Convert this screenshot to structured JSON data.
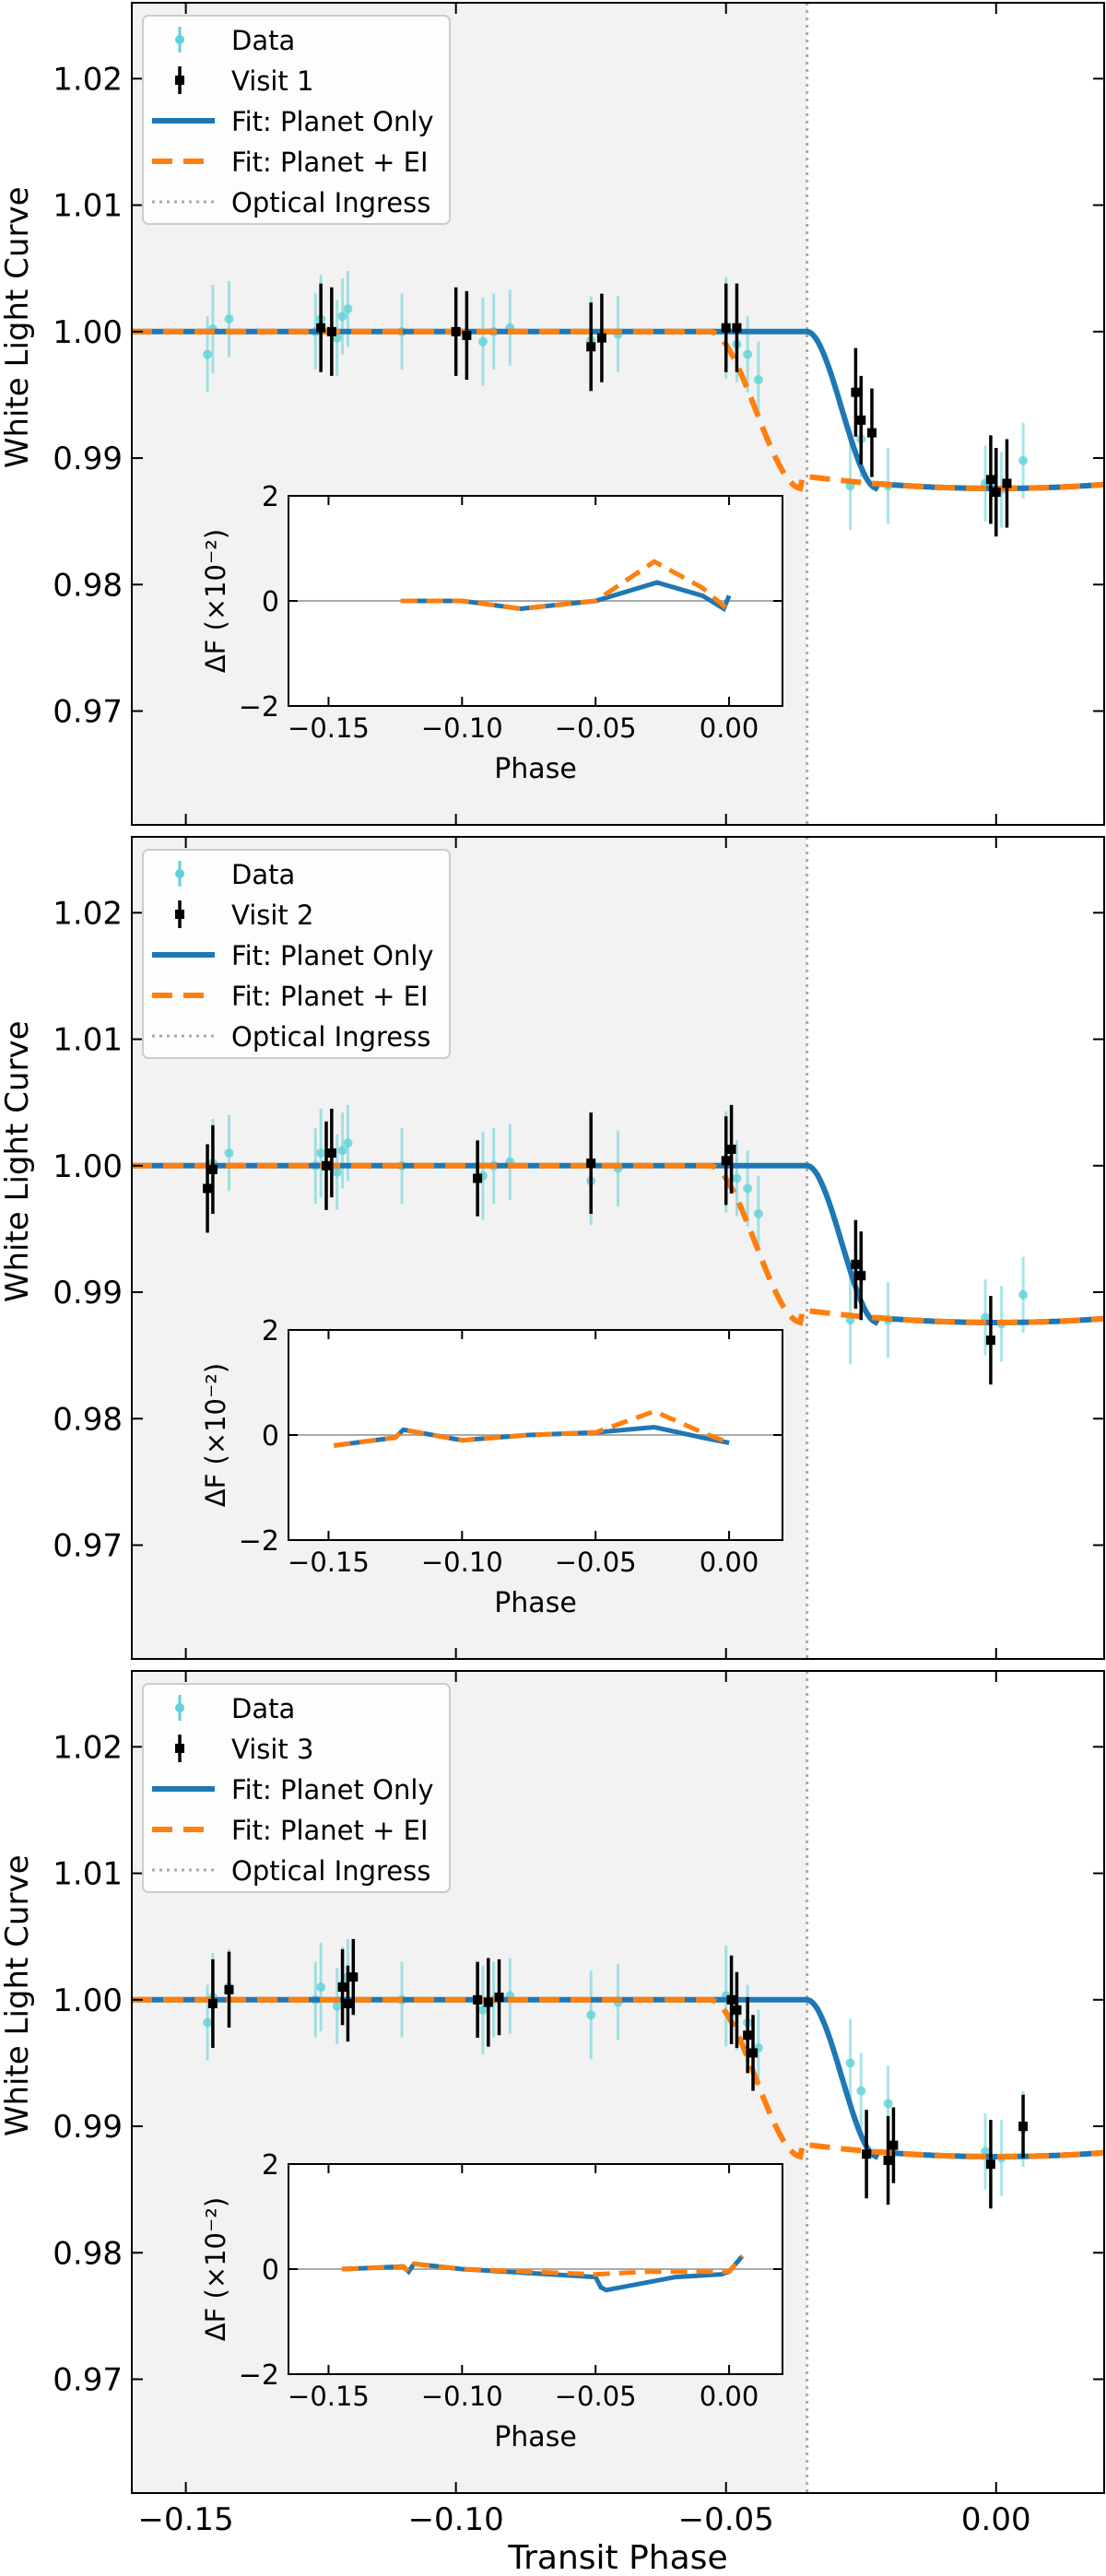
{
  "figure": {
    "xlabel": "Transit Phase",
    "ylabel": "White Light Curve",
    "xticks": [
      {
        "value": -0.15,
        "label": "−0.15"
      },
      {
        "value": -0.1,
        "label": "−0.10"
      },
      {
        "value": -0.05,
        "label": "−0.05"
      },
      {
        "value": 0.0,
        "label": "0.00"
      }
    ],
    "yticks": [
      {
        "value": 0.97,
        "label": "0.97"
      },
      {
        "value": 0.98,
        "label": "0.98"
      },
      {
        "value": 0.99,
        "label": "0.99"
      },
      {
        "value": 1.0,
        "label": "1.00"
      },
      {
        "value": 1.01,
        "label": "1.01"
      },
      {
        "value": 1.02,
        "label": "1.02"
      }
    ],
    "legend_labels": {
      "data": "Data",
      "planet_only": "Fit: Planet Only",
      "planet_ei": "Fit: Planet + EI",
      "optical_ingress": "Optical Ingress"
    },
    "inset": {
      "xlabel": "Phase",
      "ylabel": "ΔF (×10⁻²)",
      "ylim": [
        -2,
        2
      ],
      "xlim": [
        -0.165,
        0.02
      ],
      "xticks": [
        {
          "value": -0.15,
          "label": "−0.15"
        },
        {
          "value": -0.1,
          "label": "−0.10"
        },
        {
          "value": -0.05,
          "label": "−0.05"
        },
        {
          "value": 0.0,
          "label": "0.00"
        }
      ],
      "yticks": [
        {
          "value": -2,
          "label": "−2"
        },
        {
          "value": 0,
          "label": "0"
        },
        {
          "value": 2,
          "label": "2"
        }
      ]
    }
  },
  "chart_data": [
    {
      "type": "scatter",
      "title": "Visit 1",
      "xlabel": "Transit Phase",
      "ylabel": "White Light Curve",
      "xlim": [
        -0.16,
        0.02
      ],
      "ylim": [
        0.961,
        1.026
      ],
      "legend": [
        "Data",
        "Visit 1",
        "Fit: Planet Only",
        "Fit: Planet + EI",
        "Optical Ingress"
      ],
      "legend_position": "top-left",
      "optical_ingress": -0.035,
      "shaded_region": [
        -0.16,
        -0.035
      ],
      "planet_only_fit": {
        "baseline": 1.0,
        "ingress_start": -0.035,
        "ingress_end": -0.022,
        "mid_depth": 0.9876
      },
      "planet_ei_fit": {
        "baseline": 1.0,
        "ingress_start": -0.053,
        "ingress_end": -0.036,
        "mid_depth": 0.9876
      },
      "data": {
        "x": [
          -0.146,
          -0.145,
          -0.142,
          -0.126,
          -0.125,
          -0.122,
          -0.121,
          -0.12,
          -0.11,
          -0.095,
          -0.093,
          -0.09,
          -0.075,
          -0.07,
          -0.05,
          -0.048,
          -0.046,
          -0.044,
          -0.027,
          -0.025,
          -0.02,
          -0.002,
          0.001,
          0.005
        ],
        "y": [
          0.9982,
          1.0002,
          1.001,
          1.0,
          1.001,
          0.9995,
          1.0012,
          1.0018,
          1.0,
          0.9992,
          1.0,
          1.0003,
          0.9993,
          0.9998,
          1.0003,
          0.999,
          0.9982,
          0.9962,
          0.9878,
          0.9915,
          0.9878,
          0.988,
          0.9875,
          0.9898
        ],
        "yerr": [
          0.003,
          0.0035,
          0.003,
          0.003,
          0.0035,
          0.003,
          0.003,
          0.003,
          0.003,
          0.0035,
          0.003,
          0.003,
          0.0035,
          0.003,
          0.004,
          0.003,
          0.003,
          0.003,
          0.0035,
          0.003,
          0.003,
          0.003,
          0.003,
          0.003
        ]
      },
      "visit": {
        "name": "Visit 1",
        "x": [
          -0.125,
          -0.123,
          -0.1,
          -0.098,
          -0.075,
          -0.073,
          -0.05,
          -0.048,
          -0.026,
          -0.025,
          -0.023,
          -0.001,
          0.0,
          0.002
        ],
        "y": [
          1.0003,
          1.0,
          1.0,
          0.9997,
          0.9988,
          0.9995,
          1.0003,
          1.0003,
          0.9952,
          0.993,
          0.992,
          0.9883,
          0.9873,
          0.988
        ],
        "yerr": [
          0.0035,
          0.0035,
          0.0035,
          0.0035,
          0.0035,
          0.0035,
          0.0035,
          0.0035,
          0.0035,
          0.0035,
          0.0035,
          0.0035,
          0.0035,
          0.0035
        ]
      },
      "inset_planet_only": {
        "x": [
          -0.123,
          -0.1,
          -0.078,
          -0.05,
          -0.027,
          -0.01,
          -0.002,
          0.0
        ],
        "y": [
          0.0,
          0.0,
          -0.15,
          0.0,
          0.35,
          0.1,
          -0.15,
          0.1
        ]
      },
      "inset_planet_ei": {
        "x": [
          -0.123,
          -0.1,
          -0.078,
          -0.05,
          -0.028,
          -0.01,
          -0.002,
          0.0
        ],
        "y": [
          0.0,
          0.0,
          -0.15,
          0.0,
          0.75,
          0.25,
          -0.1,
          0.1
        ]
      }
    },
    {
      "type": "scatter",
      "title": "Visit 2",
      "xlabel": "Transit Phase",
      "ylabel": "White Light Curve",
      "xlim": [
        -0.16,
        0.02
      ],
      "ylim": [
        0.961,
        1.026
      ],
      "legend": [
        "Data",
        "Visit 2",
        "Fit: Planet Only",
        "Fit: Planet + EI",
        "Optical Ingress"
      ],
      "legend_position": "top-left",
      "optical_ingress": -0.035,
      "shaded_region": [
        -0.16,
        -0.035
      ],
      "planet_only_fit": {
        "baseline": 1.0,
        "ingress_start": -0.035,
        "ingress_end": -0.022,
        "mid_depth": 0.9876
      },
      "planet_ei_fit": {
        "baseline": 1.0,
        "ingress_start": -0.053,
        "ingress_end": -0.036,
        "mid_depth": 0.9876
      },
      "data": {
        "x": [
          -0.146,
          -0.145,
          -0.142,
          -0.126,
          -0.125,
          -0.122,
          -0.121,
          -0.12,
          -0.11,
          -0.095,
          -0.093,
          -0.09,
          -0.075,
          -0.07,
          -0.05,
          -0.048,
          -0.046,
          -0.044,
          -0.027,
          -0.025,
          -0.02,
          -0.002,
          0.001,
          0.005
        ],
        "y": [
          0.9982,
          1.0002,
          1.001,
          1.0,
          1.001,
          0.9995,
          1.0012,
          1.0018,
          1.0,
          0.9992,
          1.0,
          1.0003,
          0.9988,
          0.9998,
          1.0003,
          0.999,
          0.9982,
          0.9962,
          0.9878,
          0.9915,
          0.9878,
          0.988,
          0.9875,
          0.9898
        ],
        "yerr": [
          0.003,
          0.0035,
          0.003,
          0.003,
          0.0035,
          0.003,
          0.003,
          0.003,
          0.003,
          0.0035,
          0.003,
          0.003,
          0.0035,
          0.003,
          0.004,
          0.003,
          0.003,
          0.003,
          0.0035,
          0.003,
          0.003,
          0.003,
          0.003,
          0.003
        ]
      },
      "visit": {
        "name": "Visit 2",
        "x": [
          -0.146,
          -0.145,
          -0.124,
          -0.123,
          -0.096,
          -0.075,
          -0.05,
          -0.049,
          -0.026,
          -0.025,
          -0.001
        ],
        "y": [
          0.9982,
          0.9997,
          1.0,
          1.001,
          0.999,
          1.0002,
          1.0004,
          1.0013,
          0.9922,
          0.9913,
          0.9862
        ],
        "yerr": [
          0.0035,
          0.0035,
          0.0035,
          0.0035,
          0.003,
          0.004,
          0.0035,
          0.0035,
          0.0035,
          0.0035,
          0.0035
        ]
      },
      "inset_planet_only": {
        "x": [
          -0.148,
          -0.125,
          -0.122,
          -0.1,
          -0.075,
          -0.05,
          -0.028,
          -0.01,
          0.0
        ],
        "y": [
          -0.2,
          -0.05,
          0.1,
          -0.1,
          0.0,
          0.05,
          0.15,
          -0.05,
          -0.15
        ]
      },
      "inset_planet_ei": {
        "x": [
          -0.148,
          -0.125,
          -0.122,
          -0.1,
          -0.075,
          -0.05,
          -0.028,
          -0.01,
          0.0
        ],
        "y": [
          -0.2,
          -0.05,
          0.1,
          -0.1,
          0.0,
          0.05,
          0.45,
          0.05,
          -0.15
        ]
      }
    },
    {
      "type": "scatter",
      "title": "Visit 3",
      "xlabel": "Transit Phase",
      "ylabel": "White Light Curve",
      "xlim": [
        -0.16,
        0.02
      ],
      "ylim": [
        0.961,
        1.026
      ],
      "legend": [
        "Data",
        "Visit 3",
        "Fit: Planet Only",
        "Fit: Planet + EI",
        "Optical Ingress"
      ],
      "legend_position": "top-left",
      "optical_ingress": -0.035,
      "shaded_region": [
        -0.16,
        -0.035
      ],
      "planet_only_fit": {
        "baseline": 1.0,
        "ingress_start": -0.035,
        "ingress_end": -0.022,
        "mid_depth": 0.9876
      },
      "planet_ei_fit": {
        "baseline": 1.0,
        "ingress_start": -0.053,
        "ingress_end": -0.036,
        "mid_depth": 0.9876
      },
      "data": {
        "x": [
          -0.146,
          -0.145,
          -0.142,
          -0.126,
          -0.125,
          -0.122,
          -0.121,
          -0.12,
          -0.11,
          -0.095,
          -0.093,
          -0.09,
          -0.075,
          -0.07,
          -0.05,
          -0.048,
          -0.046,
          -0.044,
          -0.027,
          -0.025,
          -0.02,
          -0.002,
          0.001,
          0.005
        ],
        "y": [
          0.9982,
          1.0002,
          1.001,
          1.0,
          1.001,
          0.9995,
          1.0012,
          1.0018,
          1.0,
          0.9992,
          1.0,
          1.0003,
          0.9988,
          0.9998,
          1.0003,
          0.999,
          0.9982,
          0.9962,
          0.995,
          0.9928,
          0.9918,
          0.988,
          0.9875,
          0.9898
        ],
        "yerr": [
          0.003,
          0.0035,
          0.003,
          0.003,
          0.0035,
          0.003,
          0.003,
          0.003,
          0.003,
          0.0035,
          0.003,
          0.003,
          0.0035,
          0.003,
          0.004,
          0.003,
          0.003,
          0.003,
          0.0035,
          0.003,
          0.003,
          0.003,
          0.003,
          0.003
        ]
      },
      "visit": {
        "name": "Visit 3",
        "x": [
          -0.145,
          -0.142,
          -0.121,
          -0.12,
          -0.119,
          -0.096,
          -0.094,
          -0.092,
          -0.049,
          -0.048,
          -0.046,
          -0.045,
          -0.024,
          -0.02,
          -0.019,
          -0.001,
          0.005
        ],
        "y": [
          0.9997,
          1.0008,
          1.001,
          0.9997,
          1.0018,
          1.0,
          0.9998,
          1.0002,
          1.0,
          0.9992,
          0.9972,
          0.9958,
          0.9878,
          0.9873,
          0.9885,
          0.987,
          0.99
        ],
        "yerr": [
          0.0035,
          0.003,
          0.003,
          0.003,
          0.003,
          0.003,
          0.0035,
          0.003,
          0.0035,
          0.003,
          0.003,
          0.003,
          0.0035,
          0.0035,
          0.003,
          0.0035,
          0.0025
        ]
      },
      "inset_planet_only": {
        "x": [
          -0.145,
          -0.122,
          -0.12,
          -0.118,
          -0.1,
          -0.05,
          -0.048,
          -0.046,
          -0.02,
          -0.003,
          0.0,
          0.005
        ],
        "y": [
          0.0,
          0.05,
          -0.05,
          0.1,
          0.0,
          -0.15,
          -0.35,
          -0.4,
          -0.15,
          -0.1,
          -0.05,
          0.25
        ]
      },
      "inset_planet_ei": {
        "x": [
          -0.145,
          -0.122,
          -0.12,
          -0.118,
          -0.1,
          -0.05,
          -0.03,
          -0.02,
          -0.003,
          0.0,
          0.005
        ],
        "y": [
          0.0,
          0.05,
          -0.05,
          0.1,
          0.0,
          -0.1,
          -0.05,
          -0.05,
          -0.05,
          -0.05,
          0.25
        ]
      }
    }
  ]
}
